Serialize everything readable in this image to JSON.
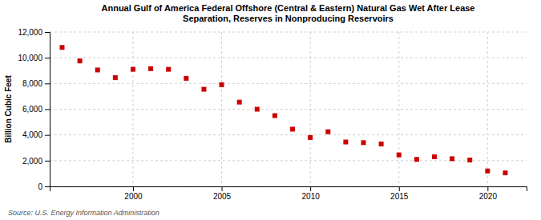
{
  "chart_data": {
    "type": "scatter",
    "title": "Annual Gulf of America Federal Offshore (Central & Eastern) Natural Gas Wet After Lease\nSeparation, Reserves in Nonproducing Reservoirs",
    "ylabel": "Billion Cubic Feet",
    "source": "Source: U.S. Energy Information Administration",
    "x": [
      1996,
      1997,
      1998,
      1999,
      2000,
      2001,
      2002,
      2003,
      2004,
      2005,
      2006,
      2007,
      2008,
      2009,
      2010,
      2011,
      2012,
      2013,
      2014,
      2015,
      2016,
      2017,
      2018,
      2019,
      2020,
      2021
    ],
    "values": [
      10800,
      9750,
      9050,
      8450,
      9100,
      9150,
      9100,
      8400,
      7550,
      7900,
      6550,
      6000,
      5500,
      4450,
      3800,
      4250,
      3450,
      3400,
      3300,
      2450,
      2100,
      2300,
      2150,
      2050,
      1200,
      1050
    ],
    "color": "#cc0000",
    "marker": "square",
    "grid": true,
    "xlim": [
      1995.3,
      2022.2
    ],
    "xticks": [
      2000,
      2005,
      2010,
      2015,
      2020
    ],
    "ylim": [
      0,
      12000
    ],
    "yticks": [
      0,
      {
        "value": 2000,
        "label": "2,000"
      },
      {
        "value": 4000,
        "label": "4,000"
      },
      {
        "value": 6000,
        "label": "6,000"
      },
      {
        "value": 8000,
        "label": "8,000"
      },
      {
        "value": 10000,
        "label": "10,000"
      },
      {
        "value": 12000,
        "label": "12,000"
      }
    ]
  }
}
